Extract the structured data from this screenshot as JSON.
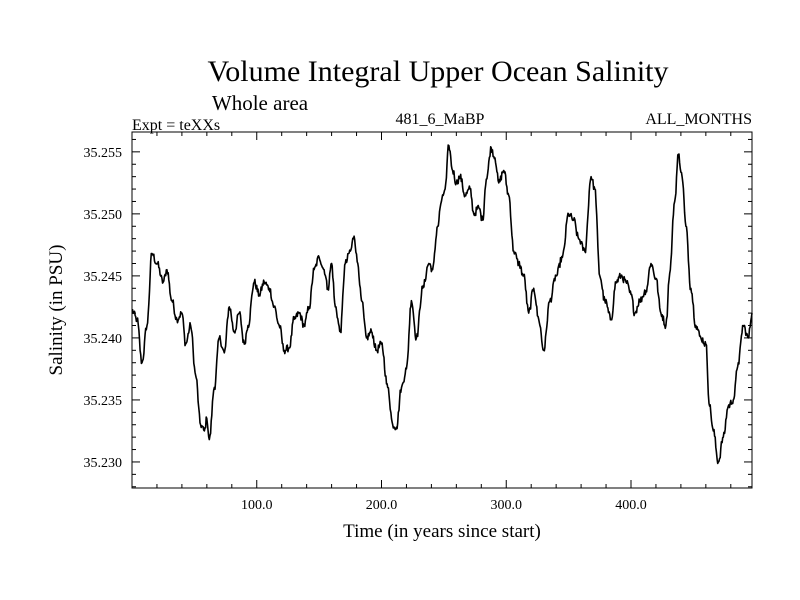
{
  "chart_data": {
    "type": "line",
    "title": "Volume Integral Upper Ocean Salinity",
    "subtitle": "Whole area",
    "header_left": "Expt = teXXs",
    "header_center": "481_6_MaBP",
    "header_right": "ALL_MONTHS",
    "xlabel": "Time (in years since start)",
    "ylabel": "Salinity (in PSU)",
    "xlim": [
      0,
      497
    ],
    "ylim": [
      35.2279,
      35.2566
    ],
    "x_ticks": [
      100,
      200,
      300,
      400
    ],
    "x_tick_labels": [
      "100.0",
      "200.0",
      "300.0",
      "400.0"
    ],
    "y_ticks": [
      35.23,
      35.235,
      35.24,
      35.245,
      35.25,
      35.255
    ],
    "y_tick_labels": [
      "35.230",
      "35.235",
      "35.240",
      "35.245",
      "35.250",
      "35.255"
    ],
    "x_minor_step": 20,
    "y_minor_step": 0.001,
    "grid": false,
    "series": [
      {
        "name": "Salinity",
        "color": "#000000",
        "anchors": [
          [
            0,
            35.2422
          ],
          [
            4,
            35.2415
          ],
          [
            8,
            35.238
          ],
          [
            12,
            35.241
          ],
          [
            16,
            35.2468
          ],
          [
            20,
            35.246
          ],
          [
            25,
            35.2445
          ],
          [
            28,
            35.2455
          ],
          [
            32,
            35.243
          ],
          [
            36,
            35.2415
          ],
          [
            40,
            35.242
          ],
          [
            43,
            35.2395
          ],
          [
            47,
            35.241
          ],
          [
            51,
            35.237
          ],
          [
            55,
            35.233
          ],
          [
            58,
            35.2325
          ],
          [
            60,
            35.2335
          ],
          [
            62,
            35.2318
          ],
          [
            66,
            35.236
          ],
          [
            70,
            35.24
          ],
          [
            74,
            35.2388
          ],
          [
            78,
            35.2425
          ],
          [
            82,
            35.2405
          ],
          [
            86,
            35.242
          ],
          [
            90,
            35.2395
          ],
          [
            93,
            35.241
          ],
          [
            98,
            35.2445
          ],
          [
            102,
            35.2435
          ],
          [
            106,
            35.2445
          ],
          [
            110,
            35.244
          ],
          [
            114,
            35.2425
          ],
          [
            118,
            35.241
          ],
          [
            122,
            35.239
          ],
          [
            126,
            35.2392
          ],
          [
            130,
            35.2415
          ],
          [
            134,
            35.242
          ],
          [
            138,
            35.241
          ],
          [
            142,
            35.2425
          ],
          [
            146,
            35.2455
          ],
          [
            150,
            35.2465
          ],
          [
            154,
            35.2455
          ],
          [
            157,
            35.244
          ],
          [
            160,
            35.246
          ],
          [
            163,
            35.2425
          ],
          [
            167,
            35.2405
          ],
          [
            171,
            35.246
          ],
          [
            175,
            35.247
          ],
          [
            178,
            35.2482
          ],
          [
            181,
            35.246
          ],
          [
            184,
            35.243
          ],
          [
            188,
            35.24
          ],
          [
            192,
            35.2405
          ],
          [
            196,
            35.239
          ],
          [
            200,
            35.2395
          ],
          [
            205,
            35.236
          ],
          [
            209,
            35.233
          ],
          [
            212,
            35.2328
          ],
          [
            216,
            35.236
          ],
          [
            220,
            35.2375
          ],
          [
            224,
            35.243
          ],
          [
            228,
            35.24
          ],
          [
            233,
            35.244
          ],
          [
            238,
            35.246
          ],
          [
            241,
            35.2455
          ],
          [
            245,
            35.249
          ],
          [
            248,
            35.251
          ],
          [
            251,
            35.252
          ],
          [
            254,
            35.2555
          ],
          [
            257,
            35.2535
          ],
          [
            260,
            35.2525
          ],
          [
            263,
            35.253
          ],
          [
            267,
            35.2515
          ],
          [
            271,
            35.252
          ],
          [
            274,
            35.25
          ],
          [
            278,
            35.2505
          ],
          [
            281,
            35.2495
          ],
          [
            284,
            35.2528
          ],
          [
            288,
            35.2553
          ],
          [
            291,
            35.2545
          ],
          [
            294,
            35.2525
          ],
          [
            298,
            35.2535
          ],
          [
            302,
            35.2515
          ],
          [
            306,
            35.247
          ],
          [
            310,
            35.246
          ],
          [
            314,
            35.245
          ],
          [
            318,
            35.242
          ],
          [
            322,
            35.244
          ],
          [
            326,
            35.2415
          ],
          [
            330,
            35.239
          ],
          [
            335,
            35.243
          ],
          [
            340,
            35.245
          ],
          [
            345,
            35.2465
          ],
          [
            350,
            35.25
          ],
          [
            354,
            35.2495
          ],
          [
            358,
            35.248
          ],
          [
            363,
            35.247
          ],
          [
            368,
            35.253
          ],
          [
            371,
            35.252
          ],
          [
            375,
            35.245
          ],
          [
            379,
            35.243
          ],
          [
            384,
            35.2415
          ],
          [
            388,
            35.2445
          ],
          [
            392,
            35.245
          ],
          [
            396,
            35.2445
          ],
          [
            400,
            35.2435
          ],
          [
            403,
            35.242
          ],
          [
            407,
            35.243
          ],
          [
            412,
            35.2438
          ],
          [
            416,
            35.246
          ],
          [
            420,
            35.2448
          ],
          [
            424,
            35.242
          ],
          [
            428,
            35.241
          ],
          [
            431,
            35.2452
          ],
          [
            435,
            35.251
          ],
          [
            438,
            35.2548
          ],
          [
            441,
            35.253
          ],
          [
            444,
            35.249
          ],
          [
            448,
            35.244
          ],
          [
            452,
            35.241
          ],
          [
            456,
            35.24
          ],
          [
            460,
            35.2395
          ],
          [
            463,
            35.2345
          ],
          [
            466,
            35.2325
          ],
          [
            470,
            35.23
          ],
          [
            474,
            35.232
          ],
          [
            478,
            35.2345
          ],
          [
            482,
            35.235
          ],
          [
            486,
            35.238
          ],
          [
            490,
            35.241
          ],
          [
            494,
            35.24
          ],
          [
            497,
            35.242
          ]
        ]
      }
    ]
  }
}
